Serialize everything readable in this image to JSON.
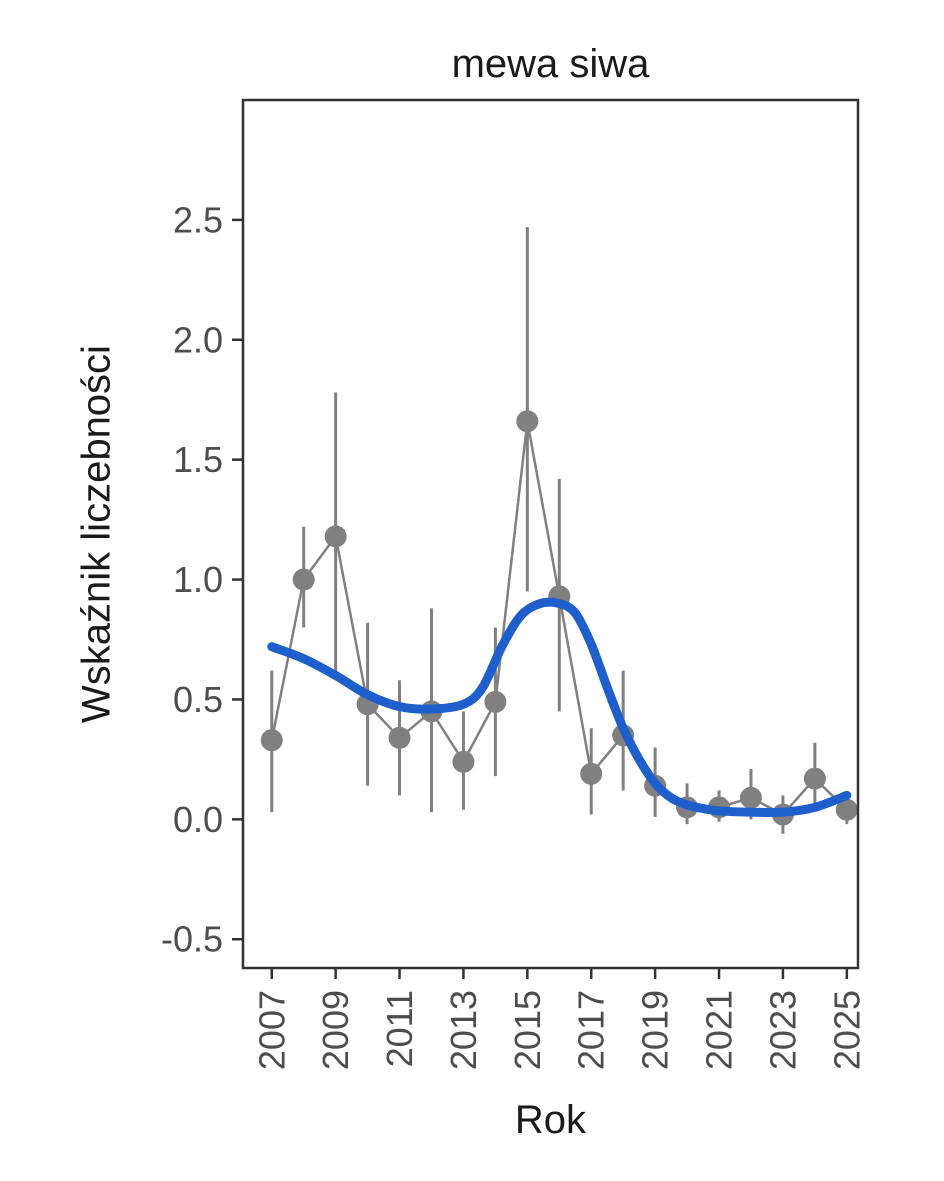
{
  "chart_data": {
    "type": "scatter",
    "title": "mewa siwa",
    "xlabel": "Rok",
    "ylabel": "Wskaźnik liczebności",
    "xlim": [
      2006.1,
      2025.35
    ],
    "ylim": [
      -0.62,
      3.0
    ],
    "xticks": [
      2007,
      2009,
      2011,
      2013,
      2015,
      2017,
      2019,
      2021,
      2023,
      2025
    ],
    "yticks": [
      "-0.5",
      "0.0",
      "0.5",
      "1.0",
      "1.5",
      "2.0",
      "2.5"
    ],
    "grid": false,
    "legend": false,
    "colors": {
      "point": "#808080",
      "errorbar": "#808080",
      "line": "#808080",
      "smooth": "#1f5fcc",
      "axis": "#333333",
      "tick_text": "#4d4d4d"
    },
    "series": [
      {
        "name": "abundance-index-with-ci",
        "type": "point-errorbar-line",
        "years": [
          2007,
          2008,
          2009,
          2010,
          2011,
          2012,
          2013,
          2014,
          2015,
          2016,
          2017,
          2018,
          2019,
          2020,
          2021,
          2022,
          2023,
          2024,
          2025
        ],
        "values": [
          0.33,
          1.0,
          1.18,
          0.48,
          0.34,
          0.45,
          0.24,
          0.49,
          1.66,
          0.93,
          0.19,
          0.35,
          0.14,
          0.05,
          0.05,
          0.09,
          0.02,
          0.17,
          0.04
        ],
        "lower": [
          0.03,
          0.8,
          0.6,
          0.14,
          0.1,
          0.03,
          0.04,
          0.18,
          0.95,
          0.45,
          0.02,
          0.12,
          0.01,
          -0.02,
          -0.01,
          0.0,
          -0.06,
          0.04,
          -0.02
        ],
        "upper": [
          0.62,
          1.22,
          1.78,
          0.82,
          0.58,
          0.88,
          0.45,
          0.8,
          2.47,
          1.42,
          0.38,
          0.62,
          0.3,
          0.15,
          0.12,
          0.21,
          0.1,
          0.32,
          0.11
        ]
      },
      {
        "name": "smoothed-trend",
        "type": "smooth",
        "x": [
          2007,
          2008,
          2009,
          2010,
          2011,
          2012,
          2013,
          2013.6,
          2014.2,
          2014.8,
          2015.4,
          2016,
          2016.5,
          2017,
          2017.5,
          2018,
          2018.5,
          2019,
          2019.5,
          2020,
          2020.5,
          2021,
          2022,
          2023,
          2024,
          2025
        ],
        "y": [
          0.72,
          0.67,
          0.6,
          0.52,
          0.47,
          0.46,
          0.48,
          0.55,
          0.72,
          0.85,
          0.9,
          0.9,
          0.86,
          0.73,
          0.55,
          0.38,
          0.25,
          0.15,
          0.09,
          0.06,
          0.045,
          0.035,
          0.03,
          0.03,
          0.05,
          0.1
        ]
      }
    ]
  }
}
